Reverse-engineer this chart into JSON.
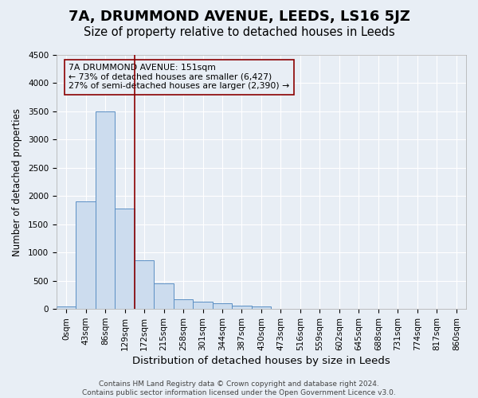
{
  "title": "7A, DRUMMOND AVENUE, LEEDS, LS16 5JZ",
  "subtitle": "Size of property relative to detached houses in Leeds",
  "xlabel": "Distribution of detached houses by size in Leeds",
  "ylabel": "Number of detached properties",
  "bar_values": [
    50,
    1900,
    3500,
    1775,
    860,
    450,
    175,
    130,
    95,
    65,
    50,
    0,
    0,
    0,
    0,
    0,
    0,
    0,
    0,
    0,
    0
  ],
  "bar_labels": [
    "0sqm",
    "43sqm",
    "86sqm",
    "129sqm",
    "172sqm",
    "215sqm",
    "258sqm",
    "301sqm",
    "344sqm",
    "387sqm",
    "430sqm",
    "473sqm",
    "516sqm",
    "559sqm",
    "602sqm",
    "645sqm",
    "688sqm",
    "731sqm",
    "774sqm",
    "817sqm",
    "860sqm"
  ],
  "bar_color": "#ccdcee",
  "bar_edge_color": "#5b8fc4",
  "background_color": "#e8eef5",
  "grid_color": "#ffffff",
  "vline_x": 3.5,
  "vline_color": "#8b0000",
  "annotation_box_text": "7A DRUMMOND AVENUE: 151sqm\n← 73% of detached houses are smaller (6,427)\n27% of semi-detached houses are larger (2,390) →",
  "annotation_box_edge_color": "#8b0000",
  "ylim": [
    0,
    4500
  ],
  "yticks": [
    0,
    500,
    1000,
    1500,
    2000,
    2500,
    3000,
    3500,
    4000,
    4500
  ],
  "footer_text": "Contains HM Land Registry data © Crown copyright and database right 2024.\nContains public sector information licensed under the Open Government Licence v3.0.",
  "title_fontsize": 13,
  "subtitle_fontsize": 10.5,
  "xlabel_fontsize": 9.5,
  "ylabel_fontsize": 8.5,
  "tick_fontsize": 7.5,
  "footer_fontsize": 6.5
}
